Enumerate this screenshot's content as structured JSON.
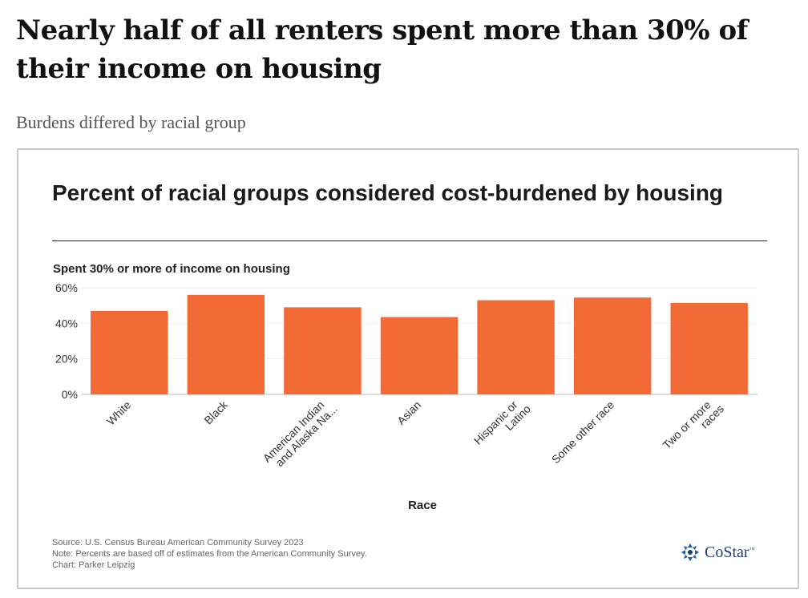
{
  "header": {
    "title": "Nearly half of all renters spent more than 30% of their income on housing",
    "subtitle": "Burdens differed by racial group"
  },
  "chart_data": {
    "type": "bar",
    "title": "Percent of racial groups considered cost-burdened by housing",
    "subtitle": "Spent 30% or more of income on housing",
    "xlabel": "Race",
    "ylabel": "",
    "ylim": [
      0,
      60
    ],
    "yticks": [
      "0%",
      "20%",
      "40%",
      "60%"
    ],
    "categories": [
      [
        "White"
      ],
      [
        "Black"
      ],
      [
        "American Indian",
        "and Alaska Na..."
      ],
      [
        "Asian"
      ],
      [
        "Hispanic or",
        "Latino"
      ],
      [
        "Some other race"
      ],
      [
        "Two or more",
        "races"
      ]
    ],
    "values": [
      47,
      56,
      49,
      43.5,
      53,
      54.5,
      51.5
    ],
    "bar_color": "#f26a36",
    "grid": true
  },
  "footer": {
    "source": "Source: U.S. Census Bureau American Community Survey 2023",
    "note": "Note: Percents are based off of estimates from the American Community Survey.",
    "credit": "Chart: Parker Leipzig"
  },
  "logo": {
    "text": "CoStar",
    "tm": "™",
    "icon": "costar-logo-icon",
    "color": "#1e3f70"
  }
}
